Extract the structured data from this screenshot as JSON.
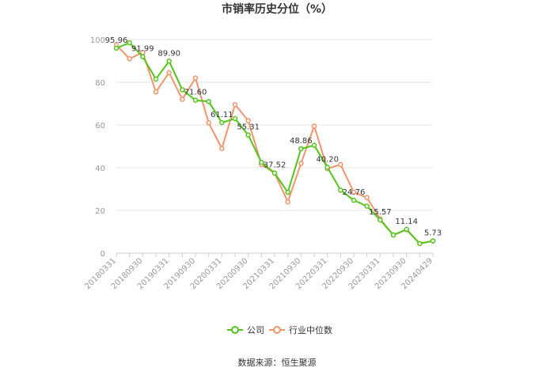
{
  "chart_data": {
    "type": "line",
    "title": "市销率历史分位（%）",
    "xlabel": "",
    "ylabel": "",
    "ylim": [
      0,
      100
    ],
    "yticks": [
      0,
      20,
      40,
      60,
      80,
      100
    ],
    "x_tick_labels": [
      "20180331",
      "20180930",
      "20190331",
      "20190930",
      "20200331",
      "20200930",
      "20210331",
      "20210930",
      "20220331",
      "20220930",
      "20230331",
      "20230930",
      "20240429"
    ],
    "x": [
      "20180331",
      "20180630",
      "20180930",
      "20181231",
      "20190331",
      "20190630",
      "20190930",
      "20191231",
      "20200331",
      "20200630",
      "20200930",
      "20201231",
      "20210331",
      "20210630",
      "20210930",
      "20211231",
      "20220331",
      "20220630",
      "20220930",
      "20221231",
      "20230331",
      "20230630",
      "20230930",
      "20231231",
      "20240429"
    ],
    "series": [
      {
        "name": "公司",
        "color": "#52c41a",
        "values": [
          95.96,
          98.5,
          91.99,
          81.5,
          89.9,
          76.5,
          71.6,
          71.0,
          61.11,
          63.0,
          55.31,
          42.5,
          37.52,
          28.5,
          48.86,
          50.5,
          40.2,
          29.5,
          24.76,
          22.0,
          15.57,
          8.5,
          11.14,
          4.5,
          5.73
        ]
      },
      {
        "name": "行业中位数",
        "color": "#f0956a",
        "values": [
          97.5,
          91.0,
          94.0,
          75.5,
          84.5,
          72.0,
          82.0,
          61.0,
          49.0,
          69.5,
          62.0,
          41.5,
          37.5,
          24.0,
          42.0,
          59.5,
          39.5,
          41.5,
          28.5,
          26.0,
          16.0,
          8.5,
          11.0,
          4.5,
          5.73
        ]
      }
    ],
    "data_labels": [
      {
        "index": 0,
        "text": "95.96"
      },
      {
        "index": 2,
        "text": "91.99"
      },
      {
        "index": 4,
        "text": "89.90"
      },
      {
        "index": 6,
        "text": "71.60"
      },
      {
        "index": 8,
        "text": "61.11"
      },
      {
        "index": 10,
        "text": "55.31"
      },
      {
        "index": 12,
        "text": "37.52"
      },
      {
        "index": 14,
        "text": "48.86"
      },
      {
        "index": 16,
        "text": "40.20"
      },
      {
        "index": 18,
        "text": "24.76"
      },
      {
        "index": 20,
        "text": "15.57"
      },
      {
        "index": 22,
        "text": "11.14"
      },
      {
        "index": 24,
        "text": "5.73"
      }
    ],
    "grid": true,
    "legend_position": "bottom-center"
  },
  "source_text": "数据来源：恒生聚源"
}
